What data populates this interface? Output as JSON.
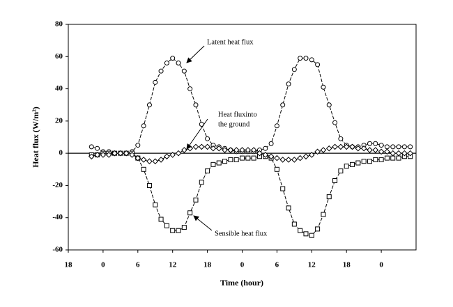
{
  "chart_data": {
    "type": "line",
    "x_label": "Time (hour)",
    "y_label": "Heat flux (W/m²)",
    "xlim": [
      18,
      78
    ],
    "ylim": [
      -60,
      80
    ],
    "xticks": [
      {
        "value": 18,
        "label": "18"
      },
      {
        "value": 24,
        "label": "0"
      },
      {
        "value": 30,
        "label": "6"
      },
      {
        "value": 36,
        "label": "12"
      },
      {
        "value": 42,
        "label": "18"
      },
      {
        "value": 48,
        "label": "0"
      },
      {
        "value": 54,
        "label": "6"
      },
      {
        "value": 60,
        "label": "12"
      },
      {
        "value": 66,
        "label": "18"
      },
      {
        "value": 72,
        "label": "0"
      }
    ],
    "yticks": [
      -60,
      -40,
      -20,
      0,
      20,
      40,
      60,
      80
    ],
    "zero_line": true,
    "x": [
      22,
      23,
      24,
      25,
      26,
      27,
      28,
      29,
      30,
      31,
      32,
      33,
      34,
      35,
      36,
      37,
      38,
      39,
      40,
      41,
      42,
      43,
      44,
      45,
      46,
      47,
      48,
      49,
      50,
      51,
      52,
      53,
      54,
      55,
      56,
      57,
      58,
      59,
      60,
      61,
      62,
      63,
      64,
      65,
      66,
      67,
      68,
      69,
      70,
      71,
      72,
      73,
      74,
      75,
      76,
      77
    ],
    "series": [
      {
        "name": "Latent heat flux",
        "color": "#000000",
        "marker": "circle",
        "values": [
          4,
          3,
          1,
          1,
          0,
          0,
          0,
          1,
          5,
          17,
          30,
          44,
          51,
          56,
          59,
          56,
          51,
          40,
          30,
          18,
          9,
          5,
          4,
          3,
          2,
          1,
          1,
          1,
          1,
          2,
          3,
          6,
          17,
          30,
          43,
          52,
          59,
          59,
          58,
          55,
          41,
          30,
          19,
          9,
          5,
          4,
          4,
          5,
          6,
          6,
          5,
          4,
          4,
          4,
          4,
          4
        ]
      },
      {
        "name": "Sensible heat flux",
        "color": "#000000",
        "marker": "square",
        "values": [
          -1,
          -1,
          0,
          0,
          0,
          0,
          0,
          0,
          -3,
          -10,
          -20,
          -32,
          -41,
          -45,
          -48,
          -48,
          -46,
          -37,
          -29,
          -18,
          -11,
          -7,
          -6,
          -5,
          -4,
          -4,
          -3,
          -3,
          -3,
          -2,
          -2,
          -3,
          -10,
          -22,
          -34,
          -44,
          -48,
          -50,
          -51,
          -47,
          -38,
          -27,
          -17,
          -11,
          -8,
          -7,
          -6,
          -5,
          -5,
          -4,
          -4,
          -3,
          -3,
          -3,
          -2,
          -2
        ]
      },
      {
        "name": "Heat fluxinto the ground",
        "color": "#000000",
        "marker": "diamond",
        "values": [
          -2,
          -1,
          -1,
          -1,
          0,
          0,
          0,
          -1,
          -3,
          -4,
          -5,
          -5,
          -4,
          -2,
          -1,
          0,
          2,
          3,
          4,
          4,
          4,
          3,
          3,
          2,
          2,
          2,
          2,
          2,
          2,
          0,
          -1,
          -2,
          -3,
          -4,
          -4,
          -4,
          -3,
          -2,
          -1,
          1,
          2,
          3,
          4,
          4,
          4,
          4,
          3,
          3,
          2,
          2,
          1,
          1,
          0,
          0,
          0,
          0
        ]
      }
    ],
    "annotations": [
      {
        "lines": [
          "Latent heat flux"
        ]
      },
      {
        "lines": [
          "Heat fluxinto",
          "the ground"
        ]
      },
      {
        "lines": [
          "Sensible heat flux"
        ]
      }
    ]
  }
}
